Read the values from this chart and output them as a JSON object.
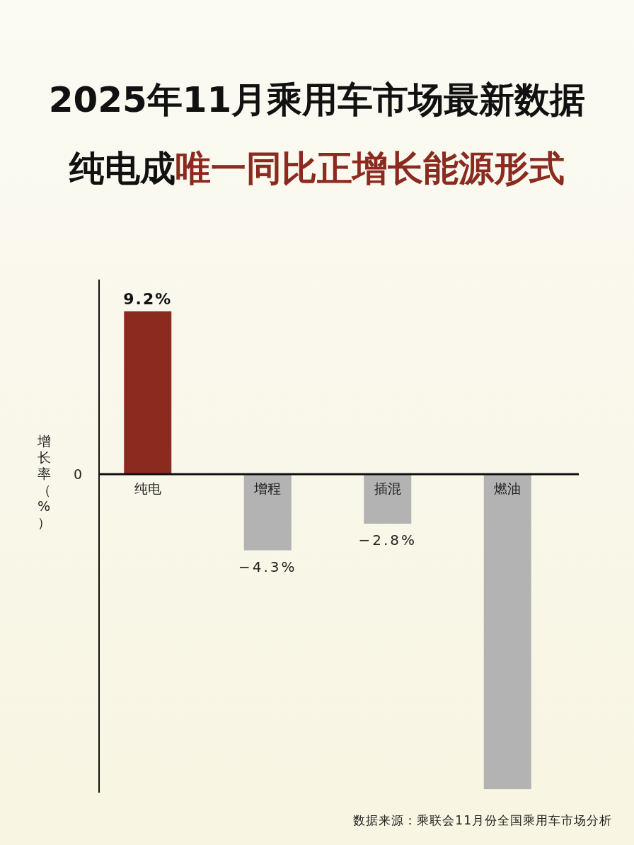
{
  "chart_data": {
    "type": "bar",
    "title": "2025年11月乘用车市场最新数据",
    "subtitle": "纯电成唯一同比正增长能源形式",
    "ylabel": "增长率（%）",
    "categories": [
      "纯电",
      "增程",
      "插混",
      "燃油"
    ],
    "values": [
      9.2,
      -4.3,
      -2.8,
      -17.8
    ],
    "colors": [
      "#8b2a1e",
      "#b3b3b3",
      "#b3b3b3",
      "#b3b3b3"
    ],
    "value_labels": [
      "9.2%",
      "−4.3%",
      "−2.8%",
      null
    ],
    "annotations": [
      "0",
      "数据来源：乘联会11月份全国乘用车市场分析"
    ]
  }
}
